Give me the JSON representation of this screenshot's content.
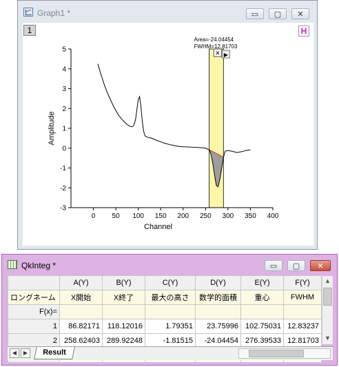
{
  "graph_window": {
    "title": "Graph1 *",
    "layer_label": "1",
    "h_badge": "H",
    "minimize_glyph": "▭",
    "maximize_glyph": "▢",
    "close_glyph": "✕"
  },
  "chart_data": {
    "type": "line",
    "xlabel": "Channel",
    "ylabel": "Amplitude",
    "xlim": [
      -50,
      400
    ],
    "ylim": [
      -3,
      5
    ],
    "x_ticks": [
      0,
      50,
      100,
      150,
      200,
      250,
      300,
      350,
      400
    ],
    "y_ticks": [
      -3,
      -2,
      -1,
      0,
      1,
      2,
      3,
      4,
      5
    ],
    "series": [
      {
        "x": [
          10,
          15,
          20,
          25,
          30,
          35,
          40,
          45,
          50,
          55,
          60,
          65,
          70,
          75,
          80,
          85,
          88,
          91,
          94,
          97,
          100,
          103,
          106,
          109,
          112,
          115,
          120,
          125,
          130,
          140,
          150,
          160,
          170,
          180,
          190,
          200,
          210,
          220,
          230,
          240,
          250,
          255,
          258,
          262,
          266,
          270,
          274,
          278,
          282,
          286,
          290,
          294,
          300,
          310,
          320,
          330,
          340,
          350
        ],
        "y": [
          4.25,
          3.85,
          3.5,
          3.15,
          2.85,
          2.6,
          2.35,
          2.1,
          1.9,
          1.7,
          1.55,
          1.42,
          1.3,
          1.2,
          1.12,
          1.08,
          1.1,
          1.2,
          1.45,
          1.95,
          2.45,
          2.6,
          2.1,
          1.35,
          0.85,
          0.62,
          0.55,
          0.53,
          0.5,
          0.4,
          0.32,
          0.24,
          0.18,
          0.13,
          0.09,
          0.07,
          0.06,
          0.05,
          0.04,
          0.02,
          0.0,
          -0.06,
          -0.08,
          -0.3,
          -0.75,
          -1.35,
          -1.88,
          -1.95,
          -1.55,
          -1.0,
          -0.45,
          -0.15,
          -0.12,
          -0.16,
          -0.22,
          -0.18,
          -0.12,
          -0.08
        ]
      }
    ],
    "highlight_range": [
      258,
      290
    ],
    "annotation": {
      "lines": [
        "Area=-24.04454",
        "FWHM=12.81703"
      ]
    }
  },
  "book_window": {
    "title": "QkInteg *",
    "minimize_glyph": "▭",
    "maximize_glyph": "▢",
    "close_glyph": "✕"
  },
  "table": {
    "columns": [
      "A(Y)",
      "B(Y)",
      "C(Y)",
      "D(Y)",
      "E(Y)",
      "F(Y)"
    ],
    "longname_label": "ロングネーム",
    "longnames": [
      "X開始",
      "X終了",
      "最大の高さ",
      "数学的面積",
      "重心",
      "FWHM"
    ],
    "fx_label": "F(x)=",
    "rows": [
      {
        "index": "1",
        "cells": [
          "86.82171",
          "118.12016",
          "1.79351",
          "23.75996",
          "102.75031",
          "12.83237"
        ]
      },
      {
        "index": "2",
        "cells": [
          "258.62403",
          "289.92248",
          "-1.81515",
          "-24.04454",
          "276.39533",
          "12.81703"
        ]
      },
      {
        "index": "3",
        "cells": [
          "",
          "",
          "",
          "",
          "",
          ""
        ]
      }
    ]
  },
  "sheet_tab": "Result"
}
